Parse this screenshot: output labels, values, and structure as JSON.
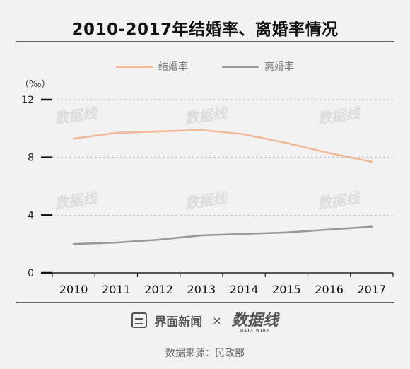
{
  "header": {
    "title": "2010-2017年结婚率、离婚率情况"
  },
  "chart_data": {
    "type": "line",
    "title": "2010-2017年结婚率、离婚率情况",
    "ylabel": "（‰）",
    "xlabel": "",
    "x": [
      "2010",
      "2011",
      "2012",
      "2013",
      "2014",
      "2015",
      "2016",
      "2017"
    ],
    "ylim": [
      0,
      12
    ],
    "yticks": [
      "0",
      "4",
      "8",
      "12"
    ],
    "legend_position": "top-center",
    "grid": "horizontal-dashed",
    "series": [
      {
        "name": "结婚率",
        "color": "#f0b99a",
        "values": [
          9.3,
          9.7,
          9.8,
          9.9,
          9.6,
          9.0,
          8.3,
          7.7
        ]
      },
      {
        "name": "离婚率",
        "color": "#999999",
        "values": [
          2.0,
          2.1,
          2.3,
          2.6,
          2.7,
          2.8,
          3.0,
          3.2
        ]
      }
    ]
  },
  "watermark": {
    "text": "数据线"
  },
  "footer": {
    "brand": "界面新闻",
    "separator": "×",
    "logo": "数据线",
    "logo_sub": "DATA WIRE",
    "source": "数据来源：民政部"
  }
}
